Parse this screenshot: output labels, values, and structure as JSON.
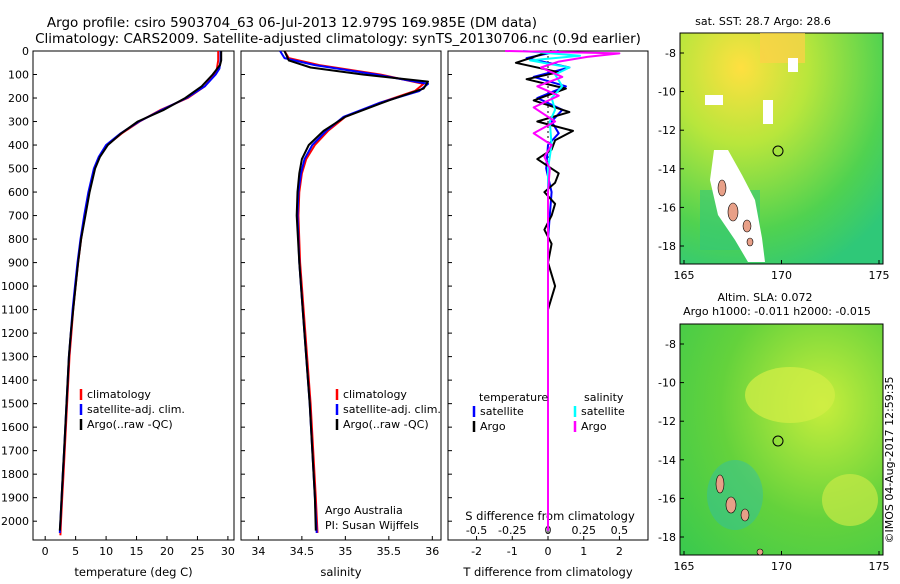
{
  "header": {
    "line1": "Argo profile: csiro 5903704_63 06-Jul-2013 12.979S 169.985E (DM data)",
    "line2": "Climatology: CARS2009. Satellite-adjusted climatology: synTS_20130706.nc (0.9d earlier)"
  },
  "side_label": "©IMOS 04-Aug-2017 12:59:35",
  "colors": {
    "climatology": "#ff0000",
    "satellite": "#0000ff",
    "argo": "#000000",
    "salinity_satellite": "#00ffff",
    "salinity_argo": "#ff00ff",
    "sst_map_base": "#c8e63c",
    "sla_map_base": "#5ad23c",
    "land": "#e8a088"
  },
  "depth_axis": {
    "ylim": [
      0,
      2080
    ],
    "ticks": [
      0,
      100,
      200,
      300,
      400,
      500,
      600,
      700,
      800,
      900,
      1000,
      1100,
      1200,
      1300,
      1400,
      1500,
      1600,
      1700,
      1800,
      1900,
      2000
    ]
  },
  "chart_data": [
    {
      "type": "line",
      "id": "temperature",
      "xlabel": "temperature (deg C)",
      "xlim": [
        -2,
        31
      ],
      "xticks": [
        0,
        5,
        10,
        15,
        20,
        25,
        30
      ],
      "legend": [
        "climatology",
        "satellite-adj. clim.",
        "Argo(..raw -QC)"
      ],
      "series": [
        {
          "name": "climatology",
          "color": "#ff0000",
          "points": [
            [
              28.4,
              0
            ],
            [
              28.4,
              40
            ],
            [
              28.2,
              75
            ],
            [
              27.8,
              100
            ],
            [
              26.2,
              150
            ],
            [
              23.4,
              200
            ],
            [
              19,
              250
            ],
            [
              15.5,
              300
            ],
            [
              12.6,
              350
            ],
            [
              10.2,
              400
            ],
            [
              8.9,
              450
            ],
            [
              8.1,
              500
            ],
            [
              7.2,
              600
            ],
            [
              6.5,
              700
            ],
            [
              5.9,
              800
            ],
            [
              5.4,
              900
            ],
            [
              5,
              1000
            ],
            [
              4.6,
              1100
            ],
            [
              4.3,
              1200
            ],
            [
              4,
              1300
            ],
            [
              3.8,
              1400
            ],
            [
              3.6,
              1500
            ],
            [
              3.4,
              1600
            ],
            [
              3.2,
              1700
            ],
            [
              3,
              1800
            ],
            [
              2.8,
              1900
            ],
            [
              2.6,
              2000
            ],
            [
              2.5,
              2060
            ]
          ]
        },
        {
          "name": "satellite-adj. clim.",
          "color": "#0000ff",
          "points": [
            [
              28.8,
              0
            ],
            [
              28.8,
              40
            ],
            [
              28.6,
              75
            ],
            [
              28,
              100
            ],
            [
              26.2,
              150
            ],
            [
              23.2,
              200
            ],
            [
              19.2,
              250
            ],
            [
              15.4,
              300
            ],
            [
              12.4,
              350
            ],
            [
              10,
              400
            ],
            [
              8.8,
              450
            ],
            [
              8,
              500
            ],
            [
              7.1,
              600
            ],
            [
              6.4,
              700
            ],
            [
              5.8,
              800
            ],
            [
              5.3,
              900
            ],
            [
              4.9,
              1000
            ],
            [
              4.5,
              1100
            ],
            [
              4.2,
              1200
            ],
            [
              3.9,
              1300
            ],
            [
              3.7,
              1400
            ],
            [
              3.5,
              1500
            ],
            [
              3.3,
              1600
            ],
            [
              3.1,
              1700
            ],
            [
              2.9,
              1800
            ],
            [
              2.7,
              1900
            ],
            [
              2.5,
              2000
            ],
            [
              2.4,
              2050
            ]
          ]
        },
        {
          "name": "Argo(..raw -QC)",
          "color": "#000000",
          "points": [
            [
              28.9,
              0
            ],
            [
              28.9,
              40
            ],
            [
              28.7,
              60
            ],
            [
              27.5,
              100
            ],
            [
              25.7,
              150
            ],
            [
              23,
              200
            ],
            [
              19.5,
              250
            ],
            [
              15.2,
              300
            ],
            [
              12.5,
              350
            ],
            [
              10.3,
              400
            ],
            [
              9,
              450
            ],
            [
              8.2,
              500
            ],
            [
              7.3,
              600
            ],
            [
              6.6,
              700
            ],
            [
              5.9,
              800
            ],
            [
              5.4,
              900
            ],
            [
              5,
              1000
            ],
            [
              4.6,
              1100
            ],
            [
              4.2,
              1200
            ],
            [
              3.9,
              1300
            ],
            [
              3.7,
              1400
            ],
            [
              3.5,
              1500
            ],
            [
              3.3,
              1600
            ],
            [
              3.1,
              1700
            ],
            [
              2.9,
              1800
            ],
            [
              2.7,
              1900
            ],
            [
              2.5,
              2000
            ],
            [
              2.4,
              2040
            ]
          ]
        }
      ]
    },
    {
      "type": "line",
      "id": "salinity",
      "xlabel": "salinity",
      "xlim": [
        33.8,
        36.1
      ],
      "xticks": [
        34,
        34.5,
        35,
        35.5,
        36
      ],
      "legend": [
        "climatology",
        "satellite-adj. clim.",
        "Argo(..raw -QC)"
      ],
      "annotation": [
        "Argo Australia",
        "PI: Susan Wijffels"
      ],
      "series": [
        {
          "name": "climatology",
          "color": "#ff0000",
          "points": [
            [
              34.3,
              0
            ],
            [
              34.35,
              30
            ],
            [
              34.7,
              60
            ],
            [
              35.4,
              100
            ],
            [
              35.9,
              140
            ],
            [
              35.8,
              170
            ],
            [
              35.4,
              220
            ],
            [
              35,
              280
            ],
            [
              34.8,
              340
            ],
            [
              34.65,
              400
            ],
            [
              34.55,
              460
            ],
            [
              34.5,
              520
            ],
            [
              34.47,
              600
            ],
            [
              34.46,
              700
            ],
            [
              34.48,
              900
            ],
            [
              34.52,
              1100
            ],
            [
              34.56,
              1300
            ],
            [
              34.6,
              1500
            ],
            [
              34.63,
              1700
            ],
            [
              34.66,
              1900
            ],
            [
              34.68,
              2050
            ]
          ]
        },
        {
          "name": "satellite-adj. clim.",
          "color": "#0000ff",
          "points": [
            [
              34.25,
              0
            ],
            [
              34.3,
              30
            ],
            [
              34.65,
              60
            ],
            [
              35.35,
              100
            ],
            [
              35.95,
              140
            ],
            [
              35.85,
              170
            ],
            [
              35.4,
              220
            ],
            [
              34.98,
              280
            ],
            [
              34.78,
              340
            ],
            [
              34.62,
              400
            ],
            [
              34.53,
              460
            ],
            [
              34.49,
              520
            ],
            [
              34.46,
              600
            ],
            [
              34.45,
              700
            ],
            [
              34.47,
              900
            ],
            [
              34.51,
              1100
            ],
            [
              34.55,
              1300
            ],
            [
              34.59,
              1500
            ],
            [
              34.62,
              1700
            ],
            [
              34.65,
              1900
            ],
            [
              34.67,
              2050
            ]
          ]
        },
        {
          "name": "Argo(..raw -QC)",
          "color": "#000000",
          "points": [
            [
              34.3,
              0
            ],
            [
              34.35,
              40
            ],
            [
              34.6,
              70
            ],
            [
              35.2,
              100
            ],
            [
              35.95,
              130
            ],
            [
              35.9,
              160
            ],
            [
              35.5,
              210
            ],
            [
              35,
              280
            ],
            [
              34.75,
              340
            ],
            [
              34.58,
              400
            ],
            [
              34.5,
              460
            ],
            [
              34.47,
              520
            ],
            [
              34.45,
              600
            ],
            [
              34.44,
              700
            ],
            [
              34.47,
              900
            ],
            [
              34.51,
              1100
            ],
            [
              34.55,
              1300
            ],
            [
              34.59,
              1500
            ],
            [
              34.62,
              1700
            ],
            [
              34.65,
              1900
            ],
            [
              34.66,
              2040
            ]
          ]
        }
      ]
    },
    {
      "type": "line",
      "id": "difference",
      "xlabel": "T difference from climatology",
      "xlabel_top": "S difference from climatology",
      "xlim": [
        -2.8,
        2.8
      ],
      "xticks": [
        -2,
        -1,
        0,
        1,
        2
      ],
      "xticks_top": [
        {
          "label": "-0.5",
          "t": -2
        },
        {
          "label": "-0.25",
          "t": -1
        },
        {
          "label": "0",
          "t": 0
        },
        {
          "label": "0.25",
          "t": 1
        },
        {
          "label": "0.5",
          "t": 2
        }
      ],
      "legend_left_title": "temperature",
      "legend_right_title": "salinity",
      "legend_left": [
        "satellite",
        "Argo"
      ],
      "legend_right": [
        "satellite",
        "Argo"
      ],
      "series": [
        {
          "name": "temperature satellite",
          "color": "#0000ff",
          "points": [
            [
              0.3,
              0
            ],
            [
              -0.6,
              30
            ],
            [
              0.6,
              70
            ],
            [
              -0.4,
              110
            ],
            [
              0.5,
              150
            ],
            [
              -0.3,
              200
            ],
            [
              0.4,
              250
            ],
            [
              0.1,
              300
            ],
            [
              0.3,
              350
            ],
            [
              0,
              400
            ],
            [
              -0.05,
              500
            ],
            [
              0.1,
              600
            ],
            [
              0.05,
              700
            ],
            [
              0,
              800
            ],
            [
              0,
              1000
            ],
            [
              0,
              1300
            ],
            [
              0,
              1600
            ],
            [
              0,
              2040
            ]
          ]
        },
        {
          "name": "temperature Argo",
          "color": "#000000",
          "points": [
            [
              0.1,
              0
            ],
            [
              -0.9,
              50
            ],
            [
              0.3,
              90
            ],
            [
              -0.6,
              120
            ],
            [
              0.5,
              160
            ],
            [
              -0.4,
              210
            ],
            [
              0.6,
              260
            ],
            [
              -0.3,
              300
            ],
            [
              0.7,
              340
            ],
            [
              0.2,
              380
            ],
            [
              0.1,
              420
            ],
            [
              -0.3,
              460
            ],
            [
              0.3,
              520
            ],
            [
              0.2,
              560
            ],
            [
              -0.1,
              600
            ],
            [
              0.2,
              650
            ],
            [
              0.1,
              700
            ],
            [
              -0.1,
              760
            ],
            [
              0.1,
              820
            ],
            [
              0,
              900
            ],
            [
              0.2,
              1000
            ],
            [
              0,
              1100
            ],
            [
              0,
              1300
            ],
            [
              0,
              1600
            ],
            [
              0,
              2040
            ]
          ]
        },
        {
          "name": "salinity satellite",
          "color": "#00ffff",
          "points": [
            [
              -0.7,
              0
            ],
            [
              0.9,
              20
            ],
            [
              -0.5,
              40
            ],
            [
              0.6,
              70
            ],
            [
              0.2,
              100
            ],
            [
              0.4,
              150
            ],
            [
              0.1,
              200
            ],
            [
              0.2,
              250
            ],
            [
              0.05,
              300
            ],
            [
              0.1,
              400
            ],
            [
              0,
              500
            ],
            [
              0,
              700
            ],
            [
              0,
              1000
            ],
            [
              0,
              1400
            ],
            [
              0,
              2040
            ]
          ]
        },
        {
          "name": "salinity Argo",
          "color": "#ff00ff",
          "points": [
            [
              -1.2,
              0
            ],
            [
              2,
              10
            ],
            [
              1.1,
              25
            ],
            [
              0.3,
              45
            ],
            [
              -0.2,
              70
            ],
            [
              0.4,
              110
            ],
            [
              -0.3,
              150
            ],
            [
              0.3,
              190
            ],
            [
              -0.4,
              240
            ],
            [
              0.2,
              300
            ],
            [
              -0.4,
              350
            ],
            [
              0.1,
              400
            ],
            [
              -0.1,
              450
            ],
            [
              0.05,
              500
            ],
            [
              0,
              600
            ],
            [
              0,
              800
            ],
            [
              0,
              2040
            ]
          ]
        }
      ]
    }
  ],
  "maps": {
    "sst": {
      "title": "sat. SST: 28.7 Argo: 28.6",
      "yticks": [
        "-8",
        "-10",
        "-12",
        "-14",
        "-16",
        "-18"
      ],
      "xticks": [
        "165",
        "170",
        "175"
      ]
    },
    "sla": {
      "title": "Altim. SLA: 0.072",
      "subtitle": "Argo h1000: -0.011 h2000: -0.015",
      "yticks": [
        "-8",
        "-10",
        "-12",
        "-14",
        "-16",
        "-18"
      ],
      "xticks": [
        "165",
        "170",
        "175"
      ]
    }
  }
}
